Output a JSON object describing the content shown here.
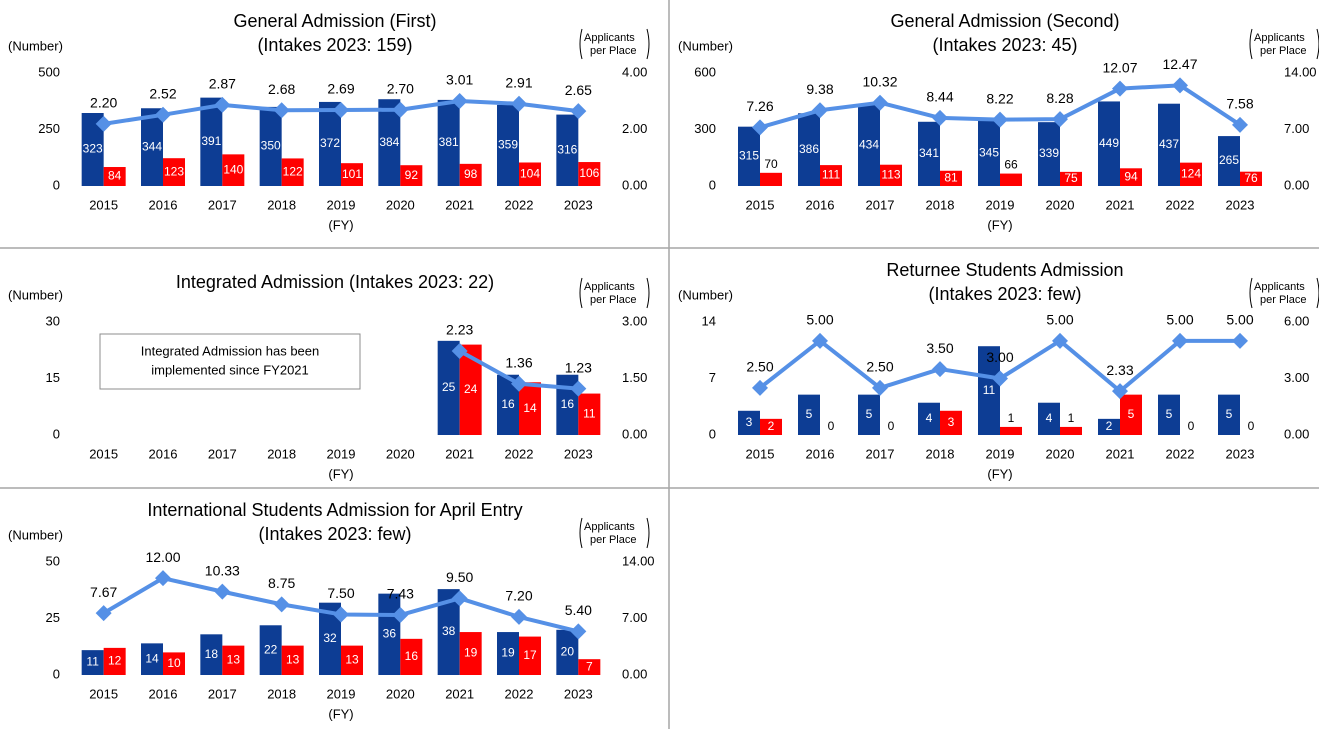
{
  "chart_data": [
    {
      "type": "bar",
      "title": "General Admission (First)",
      "subtitle": "(Intakes 2023: 159)",
      "ylabel": "(Number)",
      "y2label": [
        "Applicants",
        "per Place"
      ],
      "xlabel": "(FY)",
      "categories": [
        "2015",
        "2016",
        "2017",
        "2018",
        "2019",
        "2020",
        "2021",
        "2022",
        "2023"
      ],
      "ylim": [
        0,
        500
      ],
      "yticks": [
        0,
        250,
        500
      ],
      "y2lim": [
        0,
        4
      ],
      "y2ticks": [
        {
          "value": 0,
          "label": "0.00"
        },
        {
          "value": 2,
          "label": "2.00"
        },
        {
          "value": 4,
          "label": "4.00"
        }
      ],
      "series": [
        {
          "color": "#0d3d94",
          "values": [
            323,
            344,
            391,
            350,
            372,
            384,
            381,
            359,
            316
          ]
        },
        {
          "color": "#ff0000",
          "values": [
            84,
            123,
            140,
            122,
            101,
            92,
            98,
            104,
            106
          ]
        },
        {
          "type": "line",
          "axis": "y2",
          "color": "#5590e6",
          "values": [
            2.2,
            2.52,
            2.87,
            2.68,
            2.69,
            2.7,
            3.01,
            2.91,
            2.65
          ],
          "value_labels": [
            "2.20",
            "2.52",
            "2.87",
            "2.68",
            "2.69",
            "2.70",
            "3.01",
            "2.91",
            "2.65"
          ]
        }
      ]
    },
    {
      "type": "bar",
      "title": "General Admission (Second)",
      "subtitle": "(Intakes 2023: 45)",
      "ylabel": "(Number)",
      "y2label": [
        "Applicants",
        "per Place"
      ],
      "xlabel": "(FY)",
      "categories": [
        "2015",
        "2016",
        "2017",
        "2018",
        "2019",
        "2020",
        "2021",
        "2022",
        "2023"
      ],
      "ylim": [
        0,
        600
      ],
      "yticks": [
        0,
        300,
        600
      ],
      "y2lim": [
        0,
        14
      ],
      "y2ticks": [
        {
          "value": 0,
          "label": "0.00"
        },
        {
          "value": 7,
          "label": "7.00"
        },
        {
          "value": 14,
          "label": "14.00"
        }
      ],
      "series": [
        {
          "color": "#0d3d94",
          "values": [
            315,
            386,
            434,
            341,
            345,
            339,
            449,
            437,
            265
          ]
        },
        {
          "color": "#ff0000",
          "values": [
            70,
            111,
            113,
            81,
            66,
            75,
            94,
            124,
            76
          ]
        },
        {
          "type": "line",
          "axis": "y2",
          "color": "#5590e6",
          "values": [
            7.26,
            9.38,
            10.32,
            8.44,
            8.22,
            8.28,
            12.07,
            12.47,
            7.58
          ],
          "value_labels": [
            "7.26",
            "9.38",
            "10.32",
            "8.44",
            "8.22",
            "8.28",
            "12.07",
            "12.47",
            "7.58"
          ]
        }
      ]
    },
    {
      "type": "bar",
      "title": "Integrated Admission (Intakes 2023: 22)",
      "ylabel": "(Number)",
      "y2label": [
        "Applicants",
        "per Place"
      ],
      "xlabel": "(FY)",
      "annotation": [
        "Integrated Admission has been",
        "implemented since FY2021"
      ],
      "categories": [
        "2015",
        "2016",
        "2017",
        "2018",
        "2019",
        "2020",
        "2021",
        "2022",
        "2023"
      ],
      "ylim": [
        0,
        30
      ],
      "yticks": [
        0,
        15,
        30
      ],
      "y2lim": [
        0,
        3
      ],
      "y2ticks": [
        {
          "value": 0,
          "label": "0.00"
        },
        {
          "value": 1.5,
          "label": "1.50"
        },
        {
          "value": 3,
          "label": "3.00"
        }
      ],
      "series": [
        {
          "color": "#0d3d94",
          "values": [
            null,
            null,
            null,
            null,
            null,
            null,
            25,
            16,
            16
          ]
        },
        {
          "color": "#ff0000",
          "values": [
            null,
            null,
            null,
            null,
            null,
            null,
            24,
            14,
            11
          ]
        },
        {
          "type": "line",
          "axis": "y2",
          "color": "#5590e6",
          "values": [
            null,
            null,
            null,
            null,
            null,
            null,
            2.23,
            1.36,
            1.23
          ],
          "value_labels": [
            null,
            null,
            null,
            null,
            null,
            null,
            "2.23",
            "1.36",
            "1.23"
          ]
        }
      ]
    },
    {
      "type": "bar",
      "title": "Returnee Students Admission",
      "subtitle": "(Intakes 2023: few)",
      "ylabel": "(Number)",
      "y2label": [
        "Applicants",
        "per Place"
      ],
      "xlabel": "(FY)",
      "categories": [
        "2015",
        "2016",
        "2017",
        "2018",
        "2019",
        "2020",
        "2021",
        "2022",
        "2023"
      ],
      "ylim": [
        0,
        14
      ],
      "yticks": [
        0,
        7,
        14
      ],
      "y2lim": [
        0,
        6
      ],
      "y2ticks": [
        {
          "value": 0,
          "label": "0.00"
        },
        {
          "value": 3,
          "label": "3.00"
        },
        {
          "value": 6,
          "label": "6.00"
        }
      ],
      "series": [
        {
          "color": "#0d3d94",
          "values": [
            3,
            5,
            5,
            4,
            11,
            4,
            2,
            5,
            5
          ]
        },
        {
          "color": "#ff0000",
          "values": [
            2,
            0,
            0,
            3,
            1,
            1,
            5,
            0,
            0
          ]
        },
        {
          "type": "line",
          "axis": "y2",
          "color": "#5590e6",
          "values": [
            2.5,
            5,
            2.5,
            3.5,
            3,
            5,
            2.33,
            5,
            5
          ],
          "value_labels": [
            "2.50",
            "5.00",
            "2.50",
            "3.50",
            "3.00",
            "5.00",
            "2.33",
            "5.00",
            "5.00"
          ]
        }
      ]
    },
    {
      "type": "bar",
      "title": "International Students Admission for April Entry",
      "subtitle": "(Intakes 2023: few)",
      "ylabel": "(Number)",
      "y2label": [
        "Applicants",
        "per Place"
      ],
      "xlabel": "(FY)",
      "categories": [
        "2015",
        "2016",
        "2017",
        "2018",
        "2019",
        "2020",
        "2021",
        "2022",
        "2023"
      ],
      "ylim": [
        0,
        50
      ],
      "yticks": [
        0,
        25,
        50
      ],
      "y2lim": [
        0,
        14
      ],
      "y2ticks": [
        {
          "value": 0,
          "label": "0.00"
        },
        {
          "value": 7,
          "label": "7.00"
        },
        {
          "value": 14,
          "label": "14.00"
        }
      ],
      "series": [
        {
          "color": "#0d3d94",
          "values": [
            11,
            14,
            18,
            22,
            32,
            36,
            38,
            19,
            20
          ]
        },
        {
          "color": "#ff0000",
          "values": [
            12,
            10,
            13,
            13,
            13,
            16,
            19,
            17,
            7
          ]
        },
        {
          "type": "line",
          "axis": "y2",
          "color": "#5590e6",
          "values": [
            7.67,
            12,
            10.33,
            8.75,
            7.5,
            7.43,
            9.5,
            7.2,
            5.4
          ],
          "value_labels": [
            "7.67",
            "12.00",
            "10.33",
            "8.75",
            "7.50",
            "7.43",
            "9.50",
            "7.20",
            "5.40"
          ]
        }
      ]
    }
  ]
}
